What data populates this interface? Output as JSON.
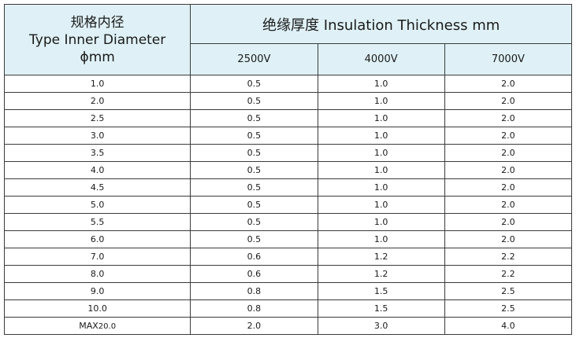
{
  "table": {
    "header": {
      "col0_cn": "规格内径",
      "col0_en": "Type Inner Diameter",
      "col0_unit": "ϕmm",
      "group_title": "绝缘厚度  Insulation Thickness   mm",
      "voltages": [
        "2500V",
        "4000V",
        "7000V"
      ]
    },
    "rows": [
      {
        "size": "1.0",
        "v2500": "0.5",
        "v4000": "1.0",
        "v7000": "2.0"
      },
      {
        "size": "2.0",
        "v2500": "0.5",
        "v4000": "1.0",
        "v7000": "2.0"
      },
      {
        "size": "2.5",
        "v2500": "0.5",
        "v4000": "1.0",
        "v7000": "2.0"
      },
      {
        "size": "3.0",
        "v2500": "0.5",
        "v4000": "1.0",
        "v7000": "2.0"
      },
      {
        "size": "3.5",
        "v2500": "0.5",
        "v4000": "1.0",
        "v7000": "2.0"
      },
      {
        "size": "4.0",
        "v2500": "0.5",
        "v4000": "1.0",
        "v7000": "2.0"
      },
      {
        "size": "4.5",
        "v2500": "0.5",
        "v4000": "1.0",
        "v7000": "2.0"
      },
      {
        "size": "5.0",
        "v2500": "0.5",
        "v4000": "1.0",
        "v7000": "2.0"
      },
      {
        "size": "5.5",
        "v2500": "0.5",
        "v4000": "1.0",
        "v7000": "2.0"
      },
      {
        "size": "6.0",
        "v2500": "0.5",
        "v4000": "1.0",
        "v7000": "2.0"
      },
      {
        "size": "7.0",
        "v2500": "0.6",
        "v4000": "1.2",
        "v7000": "2.2"
      },
      {
        "size": "8.0",
        "v2500": "0.6",
        "v4000": "1.2",
        "v7000": "2.2"
      },
      {
        "size": "9.0",
        "v2500": "0.8",
        "v4000": "1.5",
        "v7000": "2.5"
      },
      {
        "size": "10.0",
        "v2500": "0.8",
        "v4000": "1.5",
        "v7000": "2.5"
      },
      {
        "size_prefix": "MAX",
        "size": "20.0",
        "v2500": "2.0",
        "v4000": "3.0",
        "v7000": "4.0"
      }
    ]
  },
  "colors": {
    "header_bg": "#dff1f6",
    "border": "#3b3b3b"
  }
}
